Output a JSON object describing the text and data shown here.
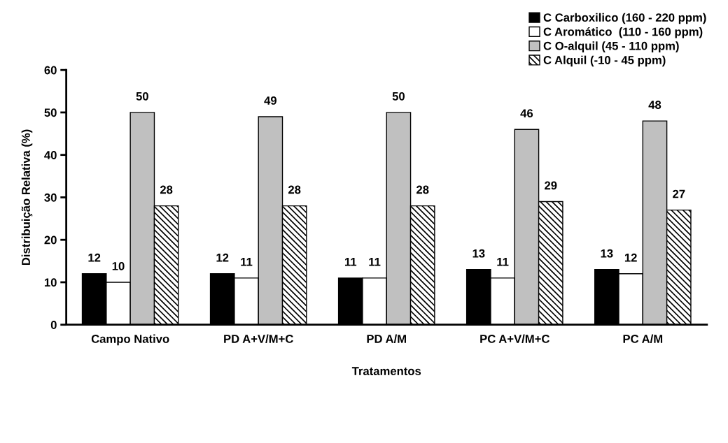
{
  "chart_data": {
    "type": "bar",
    "categories": [
      "Campo Nativo",
      "PD A+V/M+C",
      "PD A/M",
      "PC A+V/M+C",
      "PC A/M"
    ],
    "xlabel": "Tratamentos",
    "ylabel": "Distribuição Relativa (%)",
    "series": [
      {
        "name": "C Carboxilico (160 - 220 ppm)",
        "color": "#000000",
        "values": [
          12,
          12,
          11,
          13,
          13
        ]
      },
      {
        "name": "C Aromático  (110 - 160 ppm)",
        "color": "#ffffff",
        "values": [
          10,
          11,
          11,
          11,
          12
        ]
      },
      {
        "name": "C O-alquil (45 - 110 ppm)",
        "color": "#c0c0c0",
        "values": [
          50,
          49,
          50,
          46,
          48
        ]
      },
      {
        "name": "C Alquil (-10 - 45 ppm)",
        "color": "#000000",
        "values": [
          28,
          28,
          28,
          29,
          27
        ]
      }
    ],
    "ylim": [
      0,
      60
    ],
    "yticks": [
      0,
      10,
      20,
      30,
      40,
      50,
      60
    ],
    "data_labels": true,
    "grid": false,
    "legend": "top right"
  }
}
